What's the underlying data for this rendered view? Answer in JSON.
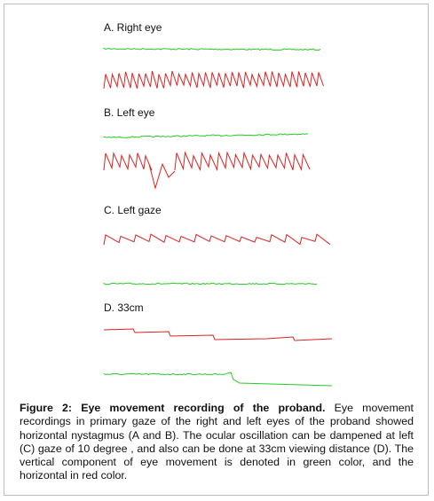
{
  "panels": [
    {
      "label": "A.  Right eye"
    },
    {
      "label": "B. Left eye"
    },
    {
      "label": "C. Left gaze"
    },
    {
      "label": "D. 33cm"
    }
  ],
  "caption": {
    "title": "Figure 2: Eye movement recording of the proband.",
    "text": " Eye movement recordings in primary gaze of the right and left eyes of the proband showed horizontal nystagmus (A and B). The ocular oscillation can be dampened at left (C) gaze of 10 degree , and also can be done at 33cm viewing distance (D). The vertical component of eye movement is denoted in green color, and the horizontal in red color."
  }
}
